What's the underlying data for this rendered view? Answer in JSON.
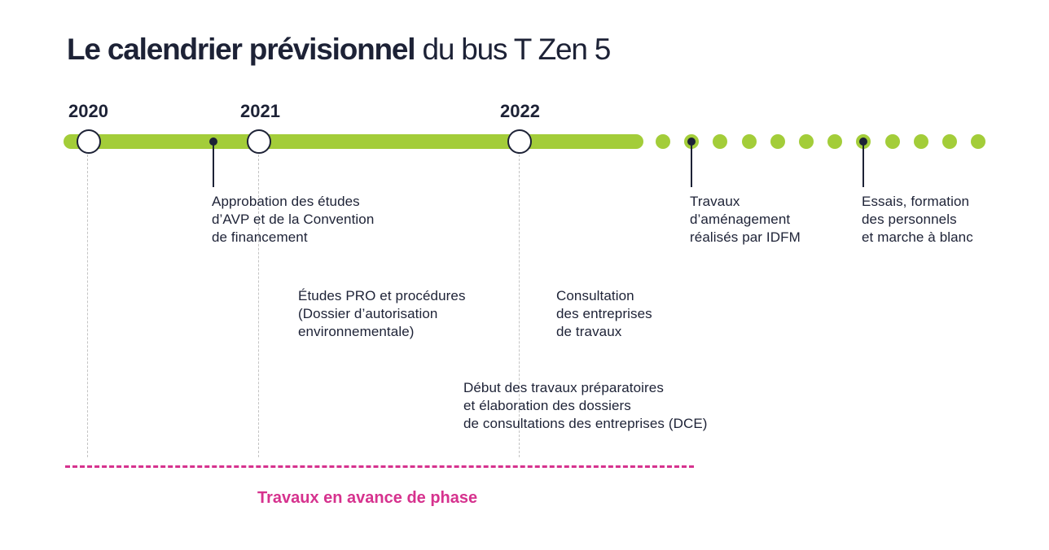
{
  "title": {
    "bold": "Le calendrier prévisionnel",
    "light": " du bus T Zen 5"
  },
  "years": [
    "2020",
    "2021",
    "2022"
  ],
  "milestones": {
    "avp": "Approbation des études\nd’AVP et de la Convention\nde financement",
    "travaux": "Travaux\nd’aménagement\nréalisés par IDFM",
    "essais": "Essais, formation\ndes personnels\net marche à blanc",
    "etudes_pro": "Études PRO et procédures\n(Dossier d’autorisation\nenvironnementale)",
    "consultation": "Consultation\ndes entreprises\nde travaux",
    "debut_travaux": "Début des travaux préparatoires\net élaboration des dossiers\nde consultations des entreprises (DCE)"
  },
  "phase_label": "Travaux en avance de phase",
  "colors": {
    "timeline_green": "#a3cd39",
    "text_navy": "#1d2236",
    "phase_magenta": "#d6328e"
  }
}
